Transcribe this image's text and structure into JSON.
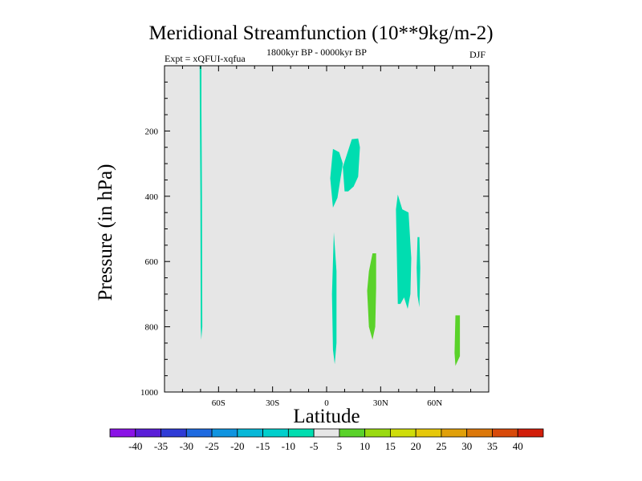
{
  "chart_data": {
    "type": "heatmap",
    "title": "Meridional Streamfunction (10**9kg/m-2)",
    "subtitle_left": "Expt = xQFUI-xqfua",
    "subtitle_center": "1800kyr BP - 0000kyr BP",
    "subtitle_right": "DJF",
    "xlabel": "Latitude",
    "ylabel": "Pressure (in hPa)",
    "xlim": [
      -90,
      90
    ],
    "ylim": [
      1000,
      0
    ],
    "x_ticks": [
      {
        "value": -60,
        "label": "60S"
      },
      {
        "value": -30,
        "label": "30S"
      },
      {
        "value": 0,
        "label": "0"
      },
      {
        "value": 30,
        "label": "30N"
      },
      {
        "value": 60,
        "label": "60N"
      }
    ],
    "y_ticks": [
      {
        "value": 200,
        "label": "200"
      },
      {
        "value": 400,
        "label": "400"
      },
      {
        "value": 600,
        "label": "600"
      },
      {
        "value": 800,
        "label": "800"
      },
      {
        "value": 1000,
        "label": "1000"
      }
    ],
    "colorbar": {
      "labels": [
        "-40",
        "-35",
        "-30",
        "-25",
        "-20",
        "-15",
        "-10",
        "-5",
        "5",
        "10",
        "15",
        "20",
        "25",
        "30",
        "35",
        "40"
      ],
      "colors": [
        "#8a13e6",
        "#5a1ed8",
        "#2f3bd6",
        "#1e6ae0",
        "#0f94e0",
        "#07b8d8",
        "#00cfcc",
        "#00ddb0",
        "#e6e6e6",
        "#5ad22a",
        "#9ada10",
        "#cfdd0a",
        "#e6c80a",
        "#e0a00a",
        "#dc780a",
        "#d84a0a",
        "#d21e0a"
      ]
    },
    "background_color": "#e6e6e6",
    "contour_regions": [
      {
        "name": "cyan-region-1",
        "value": -7.5,
        "color": "#00ddb0",
        "points": [
          [
            -70.5,
            0
          ],
          [
            -69.5,
            0
          ],
          [
            -69.5,
            130
          ],
          [
            -69.2,
            400
          ],
          [
            -69,
            800
          ],
          [
            -69.6,
            840
          ],
          [
            -69.9,
            800
          ],
          [
            -70.1,
            400
          ],
          [
            -70.4,
            130
          ]
        ]
      },
      {
        "name": "cyan-region-2",
        "value": -7.5,
        "color": "#00ddb0",
        "points": [
          [
            3.5,
            255
          ],
          [
            7,
            265
          ],
          [
            9,
            300
          ],
          [
            6,
            405
          ],
          [
            3.5,
            435
          ],
          [
            2,
            345
          ]
        ]
      },
      {
        "name": "cyan-region-3",
        "value": -7.5,
        "color": "#00ddb0",
        "points": [
          [
            14,
            225
          ],
          [
            17.5,
            223
          ],
          [
            18.5,
            250
          ],
          [
            17.5,
            340
          ],
          [
            15,
            370
          ],
          [
            12,
            385
          ],
          [
            10,
            385
          ],
          [
            9,
            310
          ]
        ]
      },
      {
        "name": "cyan-region-4",
        "value": -7.5,
        "color": "#00ddb0",
        "points": [
          [
            4,
            510
          ],
          [
            5.5,
            630
          ],
          [
            5.5,
            850
          ],
          [
            4.5,
            915
          ],
          [
            3.5,
            870
          ],
          [
            3,
            700
          ]
        ]
      },
      {
        "name": "cyan-region-5",
        "value": -7.5,
        "color": "#00ddb0",
        "points": [
          [
            39.5,
            395
          ],
          [
            42,
            440
          ],
          [
            45.5,
            450
          ],
          [
            47,
            590
          ],
          [
            46.5,
            700
          ],
          [
            45,
            745
          ],
          [
            43,
            710
          ],
          [
            41,
            730
          ],
          [
            39.5,
            730
          ],
          [
            38.5,
            440
          ]
        ]
      },
      {
        "name": "cyan-region-6",
        "value": -7.5,
        "color": "#00ddb0",
        "points": [
          [
            51.5,
            525
          ],
          [
            52,
            620
          ],
          [
            51.5,
            740
          ],
          [
            50.5,
            705
          ],
          [
            50,
            620
          ],
          [
            50.5,
            525
          ]
        ]
      },
      {
        "name": "green-region-1",
        "value": 7.5,
        "color": "#5ad22a",
        "points": [
          [
            25.5,
            575
          ],
          [
            27.5,
            575
          ],
          [
            27.5,
            680
          ],
          [
            27,
            800
          ],
          [
            25.5,
            840
          ],
          [
            23.5,
            800
          ],
          [
            22.5,
            690
          ],
          [
            23.5,
            630
          ]
        ]
      },
      {
        "name": "green-region-2",
        "value": 7.5,
        "color": "#5ad22a",
        "points": [
          [
            71.5,
            765
          ],
          [
            74,
            765
          ],
          [
            74,
            890
          ],
          [
            71.5,
            920
          ],
          [
            71,
            880
          ]
        ]
      }
    ]
  }
}
